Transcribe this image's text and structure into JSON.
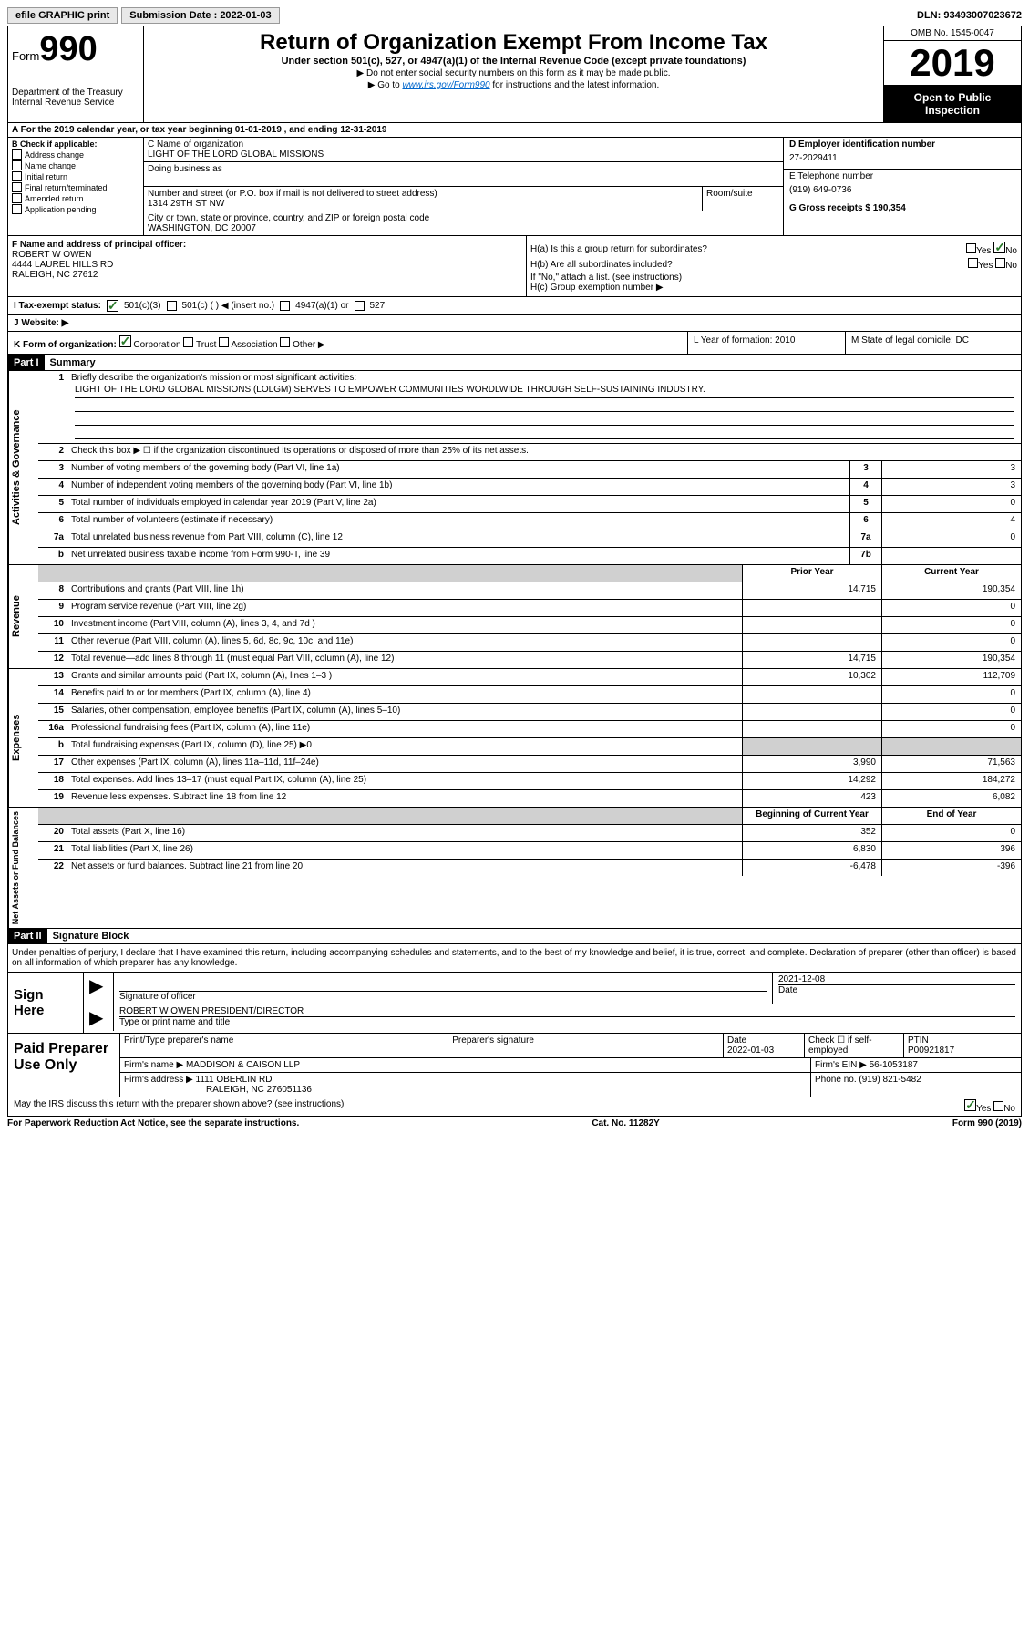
{
  "topbar": {
    "efile": "efile GRAPHIC print",
    "submission_label": "Submission Date : 2022-01-03",
    "dln": "DLN: 93493007023672"
  },
  "header": {
    "form_label": "Form",
    "form_number": "990",
    "dept": "Department of the Treasury",
    "irs": "Internal Revenue Service",
    "title": "Return of Organization Exempt From Income Tax",
    "subtitle": "Under section 501(c), 527, or 4947(a)(1) of the Internal Revenue Code (except private foundations)",
    "note1": "▶ Do not enter social security numbers on this form as it may be made public.",
    "note2_pre": "▶ Go to ",
    "note2_link": "www.irs.gov/Form990",
    "note2_post": " for instructions and the latest information.",
    "omb": "OMB No. 1545-0047",
    "year": "2019",
    "public": "Open to Public Inspection"
  },
  "section_a": "A For the 2019 calendar year, or tax year beginning 01-01-2019   , and ending 12-31-2019",
  "col_b": {
    "label": "B Check if applicable:",
    "items": [
      "Address change",
      "Name change",
      "Initial return",
      "Final return/terminated",
      "Amended return",
      "Application pending"
    ]
  },
  "col_c": {
    "name_label": "C Name of organization",
    "name": "LIGHT OF THE LORD GLOBAL MISSIONS",
    "dba_label": "Doing business as",
    "addr_label": "Number and street (or P.O. box if mail is not delivered to street address)",
    "room_label": "Room/suite",
    "addr": "1314 29TH ST NW",
    "city_label": "City or town, state or province, country, and ZIP or foreign postal code",
    "city": "WASHINGTON, DC  20007"
  },
  "col_d": {
    "ein_label": "D Employer identification number",
    "ein": "27-2029411",
    "phone_label": "E Telephone number",
    "phone": "(919) 649-0736",
    "gross_label": "G Gross receipts $ 190,354"
  },
  "col_f": {
    "label": "F Name and address of principal officer:",
    "name": "ROBERT W OWEN",
    "addr1": "4444 LAUREL HILLS RD",
    "addr2": "RALEIGH, NC  27612"
  },
  "col_h": {
    "ha": "H(a)  Is this a group return for subordinates?",
    "hb": "H(b)  Are all subordinates included?",
    "hb_note": "If \"No,\" attach a list. (see instructions)",
    "hc": "H(c)  Group exemption number ▶"
  },
  "row_i": {
    "label": "I  Tax-exempt status:",
    "opts": [
      "501(c)(3)",
      "501(c) (  ) ◀ (insert no.)",
      "4947(a)(1) or",
      "527"
    ]
  },
  "row_j": "J  Website: ▶",
  "row_k": {
    "k": "K Form of organization:",
    "opts": [
      "Corporation",
      "Trust",
      "Association",
      "Other ▶"
    ],
    "l": "L Year of formation: 2010",
    "m": "M State of legal domicile: DC"
  },
  "part1": {
    "label": "Part I",
    "title": "Summary"
  },
  "summary": {
    "q1": "Briefly describe the organization's mission or most significant activities:",
    "mission": "LIGHT OF THE LORD GLOBAL MISSIONS (LOLGM) SERVES TO EMPOWER COMMUNITIES WORDLWIDE THROUGH SELF-SUSTAINING INDUSTRY.",
    "q2": "Check this box ▶ ☐ if the organization discontinued its operations or disposed of more than 25% of its net assets.",
    "rows_governance": [
      {
        "n": "3",
        "d": "Number of voting members of the governing body (Part VI, line 1a)",
        "b": "3",
        "v": "3"
      },
      {
        "n": "4",
        "d": "Number of independent voting members of the governing body (Part VI, line 1b)",
        "b": "4",
        "v": "3"
      },
      {
        "n": "5",
        "d": "Total number of individuals employed in calendar year 2019 (Part V, line 2a)",
        "b": "5",
        "v": "0"
      },
      {
        "n": "6",
        "d": "Total number of volunteers (estimate if necessary)",
        "b": "6",
        "v": "4"
      },
      {
        "n": "7a",
        "d": "Total unrelated business revenue from Part VIII, column (C), line 12",
        "b": "7a",
        "v": "0"
      },
      {
        "n": "b",
        "d": "Net unrelated business taxable income from Form 990-T, line 39",
        "b": "7b",
        "v": ""
      }
    ],
    "prior": "Prior Year",
    "current": "Current Year",
    "rows_revenue": [
      {
        "n": "8",
        "d": "Contributions and grants (Part VIII, line 1h)",
        "p": "14,715",
        "c": "190,354"
      },
      {
        "n": "9",
        "d": "Program service revenue (Part VIII, line 2g)",
        "p": "",
        "c": "0"
      },
      {
        "n": "10",
        "d": "Investment income (Part VIII, column (A), lines 3, 4, and 7d )",
        "p": "",
        "c": "0"
      },
      {
        "n": "11",
        "d": "Other revenue (Part VIII, column (A), lines 5, 6d, 8c, 9c, 10c, and 11e)",
        "p": "",
        "c": "0"
      },
      {
        "n": "12",
        "d": "Total revenue—add lines 8 through 11 (must equal Part VIII, column (A), line 12)",
        "p": "14,715",
        "c": "190,354"
      }
    ],
    "rows_expenses": [
      {
        "n": "13",
        "d": "Grants and similar amounts paid (Part IX, column (A), lines 1–3 )",
        "p": "10,302",
        "c": "112,709"
      },
      {
        "n": "14",
        "d": "Benefits paid to or for members (Part IX, column (A), line 4)",
        "p": "",
        "c": "0"
      },
      {
        "n": "15",
        "d": "Salaries, other compensation, employee benefits (Part IX, column (A), lines 5–10)",
        "p": "",
        "c": "0"
      },
      {
        "n": "16a",
        "d": "Professional fundraising fees (Part IX, column (A), line 11e)",
        "p": "",
        "c": "0"
      },
      {
        "n": "b",
        "d": "Total fundraising expenses (Part IX, column (D), line 25) ▶0",
        "p": "shaded",
        "c": "shaded"
      },
      {
        "n": "17",
        "d": "Other expenses (Part IX, column (A), lines 11a–11d, 11f–24e)",
        "p": "3,990",
        "c": "71,563"
      },
      {
        "n": "18",
        "d": "Total expenses. Add lines 13–17 (must equal Part IX, column (A), line 25)",
        "p": "14,292",
        "c": "184,272"
      },
      {
        "n": "19",
        "d": "Revenue less expenses. Subtract line 18 from line 12",
        "p": "423",
        "c": "6,082"
      }
    ],
    "begin": "Beginning of Current Year",
    "end": "End of Year",
    "rows_net": [
      {
        "n": "20",
        "d": "Total assets (Part X, line 16)",
        "p": "352",
        "c": "0"
      },
      {
        "n": "21",
        "d": "Total liabilities (Part X, line 26)",
        "p": "6,830",
        "c": "396"
      },
      {
        "n": "22",
        "d": "Net assets or fund balances. Subtract line 21 from line 20",
        "p": "-6,478",
        "c": "-396"
      }
    ]
  },
  "part2": {
    "label": "Part II",
    "title": "Signature Block",
    "intro": "Under penalties of perjury, I declare that I have examined this return, including accompanying schedules and statements, and to the best of my knowledge and belief, it is true, correct, and complete. Declaration of preparer (other than officer) is based on all information of which preparer has any knowledge."
  },
  "sign": {
    "label": "Sign Here",
    "sig_label": "Signature of officer",
    "date": "2021-12-08",
    "date_label": "Date",
    "name": "ROBERT W OWEN  PRESIDENT/DIRECTOR",
    "name_label": "Type or print name and title"
  },
  "prep": {
    "label": "Paid Preparer Use Only",
    "h1": "Print/Type preparer's name",
    "h2": "Preparer's signature",
    "h3_label": "Date",
    "h3": "2022-01-03",
    "h4": "Check ☐ if self-employed",
    "h5_label": "PTIN",
    "h5": "P00921817",
    "firm_label": "Firm's name    ▶",
    "firm": "MADDISON & CAISON LLP",
    "ein_label": "Firm's EIN ▶",
    "ein": "56-1053187",
    "addr_label": "Firm's address ▶",
    "addr1": "1111 OBERLIN RD",
    "addr2": "RALEIGH, NC  276051136",
    "phone_label": "Phone no.",
    "phone": "(919) 821-5482",
    "discuss": "May the IRS discuss this return with the preparer shown above? (see instructions)"
  },
  "footer": {
    "left": "For Paperwork Reduction Act Notice, see the separate instructions.",
    "center": "Cat. No. 11282Y",
    "right": "Form 990 (2019)"
  }
}
